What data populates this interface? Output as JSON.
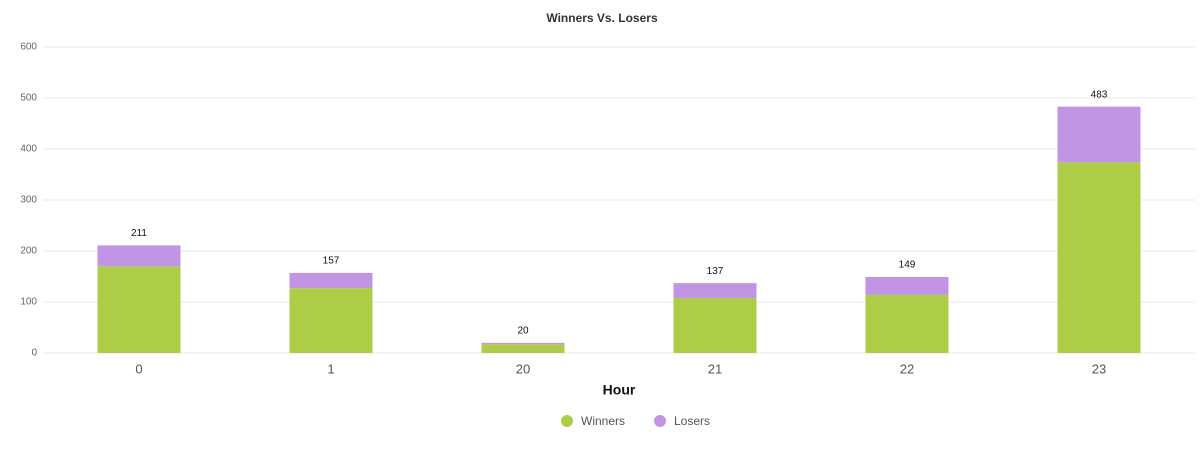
{
  "chart_data": {
    "type": "stacked-bar",
    "title": "Winners Vs. Losers",
    "x_label": "Hour",
    "categories": [
      "0",
      "1",
      "20",
      "21",
      "22",
      "23"
    ],
    "series": [
      {
        "name": "Winners",
        "color": "#adcd48",
        "values": [
          170,
          127,
          17,
          108,
          114,
          374
        ]
      },
      {
        "name": "Losers",
        "color": "#c194e4",
        "values": [
          41,
          30,
          3,
          29,
          35,
          109
        ]
      }
    ],
    "totals": [
      211,
      157,
      20,
      137,
      149,
      483
    ],
    "ylim": [
      0,
      600
    ],
    "yticks": [
      0,
      100,
      200,
      300,
      400,
      500,
      600
    ],
    "grid": true,
    "legend": "bottom"
  }
}
